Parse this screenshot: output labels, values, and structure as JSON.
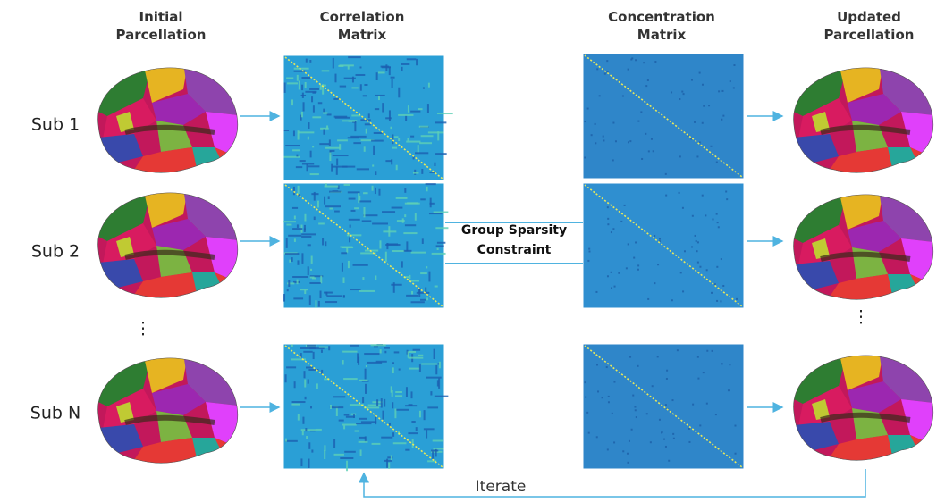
{
  "columns": [
    [
      "Initial",
      "Parcellation"
    ],
    [
      "Correlation",
      "Matrix"
    ],
    [
      "Concentration",
      "Matrix"
    ],
    [
      "Updated",
      "Parcellation"
    ]
  ],
  "rows": [
    "Sub 1",
    "Sub 2",
    "Sub N"
  ],
  "left_ellipsis": "⋮",
  "right_ellipsis": "⋮",
  "constraint": [
    "Group Sparsity",
    "Constraint"
  ],
  "loop_label": "Iterate"
}
